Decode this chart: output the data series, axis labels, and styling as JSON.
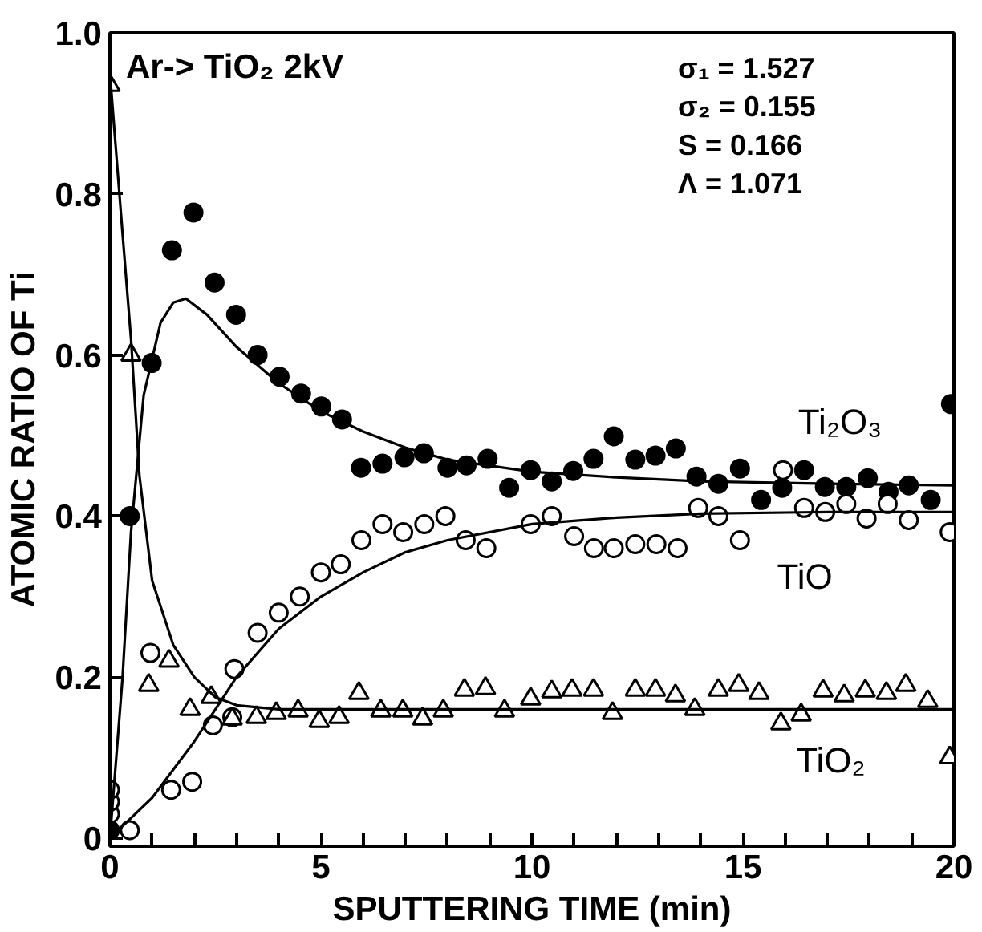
{
  "chart_data": {
    "type": "scatter",
    "xlabel": "SPUTTERING TIME (min)",
    "ylabel": "ATOMIC RATIO OF Ti",
    "annotations": [
      "Ar-> TiO₂ 2kV",
      "σ₁ = 1.527",
      "σ₂ = 0.155",
      "S = 0.166",
      "Λ = 1.071"
    ],
    "xlim": [
      0,
      20
    ],
    "ylim": [
      -0.01,
      1.0
    ],
    "xticks": [
      0,
      {
        "value": 1,
        "label": null
      },
      {
        "value": 2,
        "label": null
      },
      {
        "value": 3,
        "label": null
      },
      {
        "value": 4,
        "label": null
      },
      5,
      {
        "value": 6,
        "label": null
      },
      {
        "value": 7,
        "label": null
      },
      {
        "value": 8,
        "label": null
      },
      {
        "value": 9,
        "label": null
      },
      10,
      {
        "value": 11,
        "label": null
      },
      {
        "value": 12,
        "label": null
      },
      {
        "value": 13,
        "label": null
      },
      {
        "value": 14,
        "label": null
      },
      15,
      {
        "value": 16,
        "label": null
      },
      {
        "value": 17,
        "label": null
      },
      {
        "value": 18,
        "label": null
      },
      {
        "value": 19,
        "label": null
      },
      20
    ],
    "yticks": [
      0,
      0.2,
      0.4,
      0.6,
      0.8,
      {
        "value": 1.0,
        "label": "1.0"
      }
    ],
    "grid": false,
    "series": [
      {
        "name": "Ti₂O₃",
        "color": "#000000",
        "marker": "circle",
        "x": [
          0,
          0.47,
          0.99,
          1.47,
          1.98,
          2.48,
          2.99,
          3.5,
          4.02,
          4.53,
          5.01,
          5.5,
          5.95,
          6.46,
          6.98,
          7.44,
          8.0,
          8.45,
          8.95,
          9.46,
          9.97,
          10.47,
          10.98,
          11.46,
          11.94,
          12.45,
          12.93,
          13.41,
          13.9,
          14.42,
          14.93,
          15.43,
          15.93,
          16.45,
          16.94,
          17.45,
          17.96,
          18.45,
          18.93,
          19.45,
          19.93
        ],
        "values": [
          0.01,
          0.4,
          0.59,
          0.73,
          0.777,
          0.69,
          0.65,
          0.6,
          0.573,
          0.552,
          0.536,
          0.52,
          0.46,
          0.465,
          0.473,
          0.478,
          0.46,
          0.463,
          0.471,
          0.435,
          0.457,
          0.443,
          0.456,
          0.471,
          0.499,
          0.47,
          0.475,
          0.484,
          0.449,
          0.44,
          0.459,
          0.42,
          0.435,
          0.457,
          0.436,
          0.436,
          0.447,
          0.43,
          0.438,
          0.42,
          0.539
        ]
      },
      {
        "name": "TiO",
        "color": "#ffffff",
        "marker": "circle",
        "x": [
          0,
          0,
          0,
          0.47,
          0.96,
          1.45,
          1.95,
          2.44,
          2.9,
          2.95,
          3.5,
          4.0,
          4.5,
          5.0,
          5.47,
          5.96,
          6.46,
          6.95,
          7.45,
          7.95,
          8.43,
          8.92,
          9.97,
          10.47,
          11.0,
          11.47,
          11.94,
          12.45,
          12.95,
          13.45,
          13.94,
          14.42,
          14.93,
          15.95,
          16.45,
          16.95,
          17.45,
          17.93,
          18.43,
          18.93,
          19.9
        ],
        "values": [
          0.03,
          0.045,
          0.06,
          0.01,
          0.23,
          0.06,
          0.07,
          0.14,
          0.15,
          0.21,
          0.255,
          0.28,
          0.3,
          0.33,
          0.34,
          0.37,
          0.39,
          0.38,
          0.39,
          0.4,
          0.37,
          0.36,
          0.39,
          0.4,
          0.375,
          0.36,
          0.36,
          0.365,
          0.365,
          0.36,
          0.41,
          0.4,
          0.37,
          0.457,
          0.41,
          0.405,
          0.415,
          0.397,
          0.415,
          0.395,
          0.38
        ]
      },
      {
        "name": "TiO₂",
        "color": "#ffffff",
        "marker": "triangle",
        "x": [
          0,
          0.5,
          0.92,
          1.4,
          1.9,
          2.4,
          2.9,
          3.47,
          3.94,
          4.46,
          4.96,
          5.43,
          5.9,
          6.42,
          6.94,
          7.41,
          7.9,
          8.4,
          8.9,
          9.35,
          9.97,
          10.47,
          10.95,
          11.46,
          11.91,
          12.45,
          12.93,
          13.4,
          13.86,
          14.42,
          14.9,
          15.38,
          15.9,
          16.38,
          16.9,
          17.4,
          17.9,
          18.4,
          18.86,
          19.38,
          19.9
        ],
        "values": [
          0.935,
          0.6,
          0.19,
          0.22,
          0.16,
          0.175,
          0.148,
          0.15,
          0.155,
          0.158,
          0.145,
          0.15,
          0.18,
          0.158,
          0.158,
          0.148,
          0.158,
          0.184,
          0.186,
          0.158,
          0.173,
          0.182,
          0.184,
          0.184,
          0.155,
          0.184,
          0.184,
          0.177,
          0.16,
          0.184,
          0.19,
          0.18,
          0.142,
          0.153,
          0.183,
          0.177,
          0.183,
          0.18,
          0.19,
          0.17,
          0.1
        ]
      },
      {
        "type": "line",
        "color": "#000000",
        "line_style": "solid",
        "x": [
          0,
          0.3,
          0.5,
          0.8,
          1.2,
          1.5,
          1.8,
          2.3,
          3,
          4,
          5,
          6,
          7,
          8,
          10,
          12,
          14,
          17,
          20
        ],
        "values": [
          0,
          0.2,
          0.38,
          0.55,
          0.64,
          0.665,
          0.67,
          0.65,
          0.61,
          0.565,
          0.53,
          0.505,
          0.485,
          0.47,
          0.455,
          0.448,
          0.443,
          0.44,
          0.438
        ]
      },
      {
        "type": "line",
        "color": "#000000",
        "line_style": "solid",
        "x": [
          0,
          1,
          2,
          2.5,
          3,
          4,
          5,
          6,
          7,
          8,
          10,
          12,
          14,
          17,
          20
        ],
        "values": [
          0,
          0.05,
          0.12,
          0.16,
          0.2,
          0.26,
          0.3,
          0.33,
          0.355,
          0.37,
          0.39,
          0.398,
          0.403,
          0.405,
          0.405
        ]
      },
      {
        "type": "line",
        "color": "#000000",
        "line_style": "solid",
        "x": [
          0,
          0.3,
          0.5,
          0.7,
          1,
          1.5,
          2,
          2.5,
          3,
          4,
          10,
          20
        ],
        "values": [
          0.95,
          0.75,
          0.62,
          0.45,
          0.32,
          0.24,
          0.2,
          0.175,
          0.165,
          0.16,
          0.16,
          0.16
        ]
      }
    ]
  }
}
